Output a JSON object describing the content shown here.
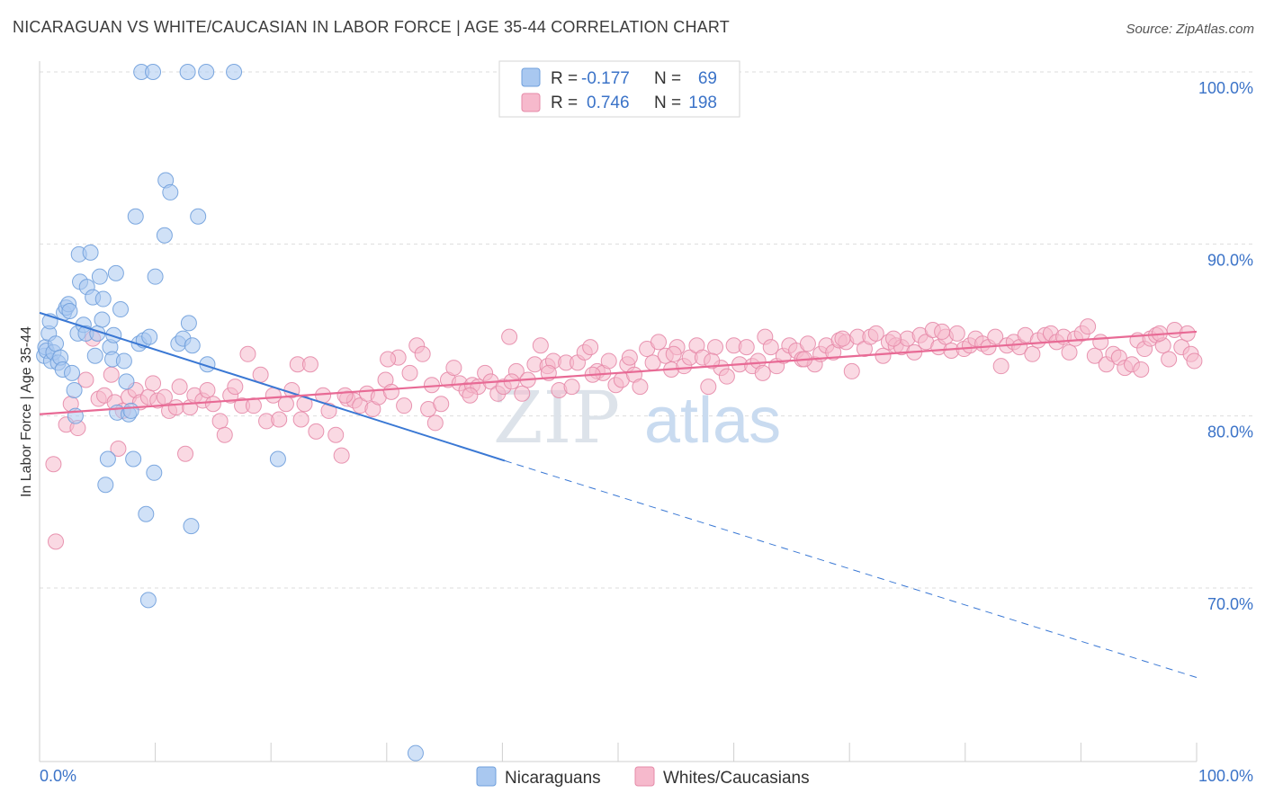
{
  "title": "NICARAGUAN VS WHITE/CAUCASIAN IN LABOR FORCE | AGE 35-44 CORRELATION CHART",
  "source": "Source: ZipAtlas.com",
  "watermark": {
    "part1": "ZIP",
    "part2": "atlas"
  },
  "colors": {
    "blue": "#3a78d4",
    "blue_fill": "#a9c8f0",
    "pink": "#e86a95",
    "pink_fill": "#f6b9cc",
    "tick": "#3b73c8",
    "grid": "#dddddd"
  },
  "legend": {
    "rows": [
      {
        "r_label": "R =",
        "r_value": "-0.177",
        "n_label": "N =",
        "n_value": "69"
      },
      {
        "r_label": "R =",
        "r_value": "0.746",
        "n_label": "N =",
        "n_value": "198"
      }
    ]
  },
  "bottom_legend": [
    "Nicaraguans",
    "Whites/Caucasians"
  ],
  "chart_data": {
    "type": "scatter",
    "xlabel": "",
    "ylabel": "In Labor Force | Age 35-44",
    "xlim": [
      0,
      100
    ],
    "ylim": [
      60,
      100
    ],
    "x_tick_labels": [
      "0.0%",
      "100.0%"
    ],
    "y_ticks": [
      70,
      80,
      90,
      100
    ],
    "y_tick_labels": [
      "70.0%",
      "80.0%",
      "90.0%",
      "100.0%"
    ],
    "grid": true,
    "series": [
      {
        "name": "Nicaraguans",
        "color": "#3a78d4",
        "trend": {
          "x": [
            0,
            40.2
          ],
          "y": [
            86.0,
            77.4
          ],
          "dashed_to": [
            100,
            64.8
          ]
        },
        "points": [
          [
            0.4,
            83.5
          ],
          [
            0.5,
            84.0
          ],
          [
            0.6,
            83.8
          ],
          [
            0.8,
            84.8
          ],
          [
            0.9,
            85.5
          ],
          [
            1.0,
            83.2
          ],
          [
            1.2,
            83.7
          ],
          [
            1.4,
            84.2
          ],
          [
            1.6,
            83.1
          ],
          [
            1.8,
            83.4
          ],
          [
            2.0,
            82.7
          ],
          [
            2.1,
            86.0
          ],
          [
            2.3,
            86.3
          ],
          [
            2.5,
            86.5
          ],
          [
            2.6,
            86.1
          ],
          [
            2.8,
            82.5
          ],
          [
            3.0,
            81.5
          ],
          [
            3.1,
            80.0
          ],
          [
            3.3,
            84.8
          ],
          [
            3.4,
            89.4
          ],
          [
            3.5,
            87.8
          ],
          [
            3.8,
            85.3
          ],
          [
            4.0,
            84.8
          ],
          [
            4.1,
            87.5
          ],
          [
            4.4,
            89.5
          ],
          [
            4.6,
            86.9
          ],
          [
            4.8,
            83.5
          ],
          [
            5.0,
            84.8
          ],
          [
            5.2,
            88.1
          ],
          [
            5.4,
            85.6
          ],
          [
            5.5,
            86.8
          ],
          [
            5.7,
            76.0
          ],
          [
            5.9,
            77.5
          ],
          [
            6.1,
            84.0
          ],
          [
            6.3,
            83.3
          ],
          [
            6.4,
            84.7
          ],
          [
            6.6,
            88.3
          ],
          [
            6.7,
            80.2
          ],
          [
            7.0,
            86.2
          ],
          [
            7.3,
            83.2
          ],
          [
            7.5,
            82.0
          ],
          [
            7.7,
            80.1
          ],
          [
            7.9,
            80.3
          ],
          [
            8.1,
            77.5
          ],
          [
            8.3,
            91.6
          ],
          [
            8.6,
            84.2
          ],
          [
            8.8,
            100.0
          ],
          [
            9.0,
            84.4
          ],
          [
            9.2,
            74.3
          ],
          [
            9.5,
            84.6
          ],
          [
            9.8,
            100.0
          ],
          [
            9.9,
            76.7
          ],
          [
            10.0,
            88.1
          ],
          [
            10.8,
            90.5
          ],
          [
            10.9,
            93.7
          ],
          [
            11.3,
            93.0
          ],
          [
            12.0,
            84.2
          ],
          [
            12.4,
            84.5
          ],
          [
            12.8,
            100.0
          ],
          [
            12.9,
            85.4
          ],
          [
            13.1,
            73.6
          ],
          [
            13.2,
            84.1
          ],
          [
            13.7,
            91.6
          ],
          [
            14.4,
            100.0
          ],
          [
            14.5,
            83.0
          ],
          [
            20.6,
            77.5
          ],
          [
            9.4,
            69.3
          ],
          [
            32.5,
            60.4
          ],
          [
            16.8,
            100.0
          ]
        ]
      },
      {
        "name": "Whites/Caucasians",
        "color": "#e86a95",
        "trend": {
          "x": [
            0,
            100
          ],
          "y": [
            80.1,
            84.9
          ]
        },
        "points": [
          [
            1.2,
            77.2
          ],
          [
            1.4,
            72.7
          ],
          [
            2.3,
            79.5
          ],
          [
            2.7,
            80.7
          ],
          [
            3.3,
            79.3
          ],
          [
            4.0,
            82.1
          ],
          [
            4.6,
            84.5
          ],
          [
            5.1,
            81.0
          ],
          [
            5.6,
            81.2
          ],
          [
            6.2,
            82.4
          ],
          [
            6.5,
            80.8
          ],
          [
            6.8,
            78.1
          ],
          [
            7.2,
            80.3
          ],
          [
            7.7,
            81.1
          ],
          [
            8.3,
            81.5
          ],
          [
            8.7,
            80.8
          ],
          [
            9.4,
            81.1
          ],
          [
            9.8,
            81.9
          ],
          [
            10.2,
            80.9
          ],
          [
            10.8,
            81.1
          ],
          [
            11.2,
            80.3
          ],
          [
            11.8,
            80.5
          ],
          [
            12.1,
            81.7
          ],
          [
            12.6,
            77.8
          ],
          [
            13.0,
            80.5
          ],
          [
            13.4,
            81.2
          ],
          [
            14.1,
            80.9
          ],
          [
            14.5,
            81.5
          ],
          [
            15.0,
            80.7
          ],
          [
            15.6,
            79.7
          ],
          [
            16.0,
            78.9
          ],
          [
            16.5,
            81.2
          ],
          [
            16.9,
            81.7
          ],
          [
            17.5,
            80.6
          ],
          [
            18.0,
            83.6
          ],
          [
            18.5,
            80.6
          ],
          [
            19.1,
            82.4
          ],
          [
            19.6,
            79.7
          ],
          [
            20.2,
            81.2
          ],
          [
            20.7,
            79.8
          ],
          [
            21.3,
            80.7
          ],
          [
            21.8,
            81.5
          ],
          [
            22.3,
            83.0
          ],
          [
            22.9,
            80.7
          ],
          [
            23.4,
            83.0
          ],
          [
            23.9,
            79.1
          ],
          [
            24.5,
            81.2
          ],
          [
            25.0,
            80.3
          ],
          [
            25.6,
            78.9
          ],
          [
            26.1,
            77.7
          ],
          [
            26.6,
            81.0
          ],
          [
            27.2,
            80.9
          ],
          [
            27.7,
            80.6
          ],
          [
            28.3,
            81.3
          ],
          [
            28.8,
            80.4
          ],
          [
            29.3,
            81.1
          ],
          [
            29.9,
            82.1
          ],
          [
            30.4,
            81.4
          ],
          [
            31.0,
            83.4
          ],
          [
            31.5,
            80.6
          ],
          [
            32.0,
            82.5
          ],
          [
            32.6,
            84.1
          ],
          [
            33.1,
            83.6
          ],
          [
            33.6,
            80.4
          ],
          [
            34.2,
            79.6
          ],
          [
            34.7,
            80.7
          ],
          [
            35.3,
            82.1
          ],
          [
            35.8,
            82.8
          ],
          [
            36.3,
            81.9
          ],
          [
            36.9,
            81.5
          ],
          [
            37.4,
            81.8
          ],
          [
            37.9,
            81.7
          ],
          [
            38.5,
            82.5
          ],
          [
            39.0,
            82.0
          ],
          [
            39.6,
            81.3
          ],
          [
            40.1,
            81.7
          ],
          [
            40.6,
            84.6
          ],
          [
            41.2,
            82.6
          ],
          [
            41.7,
            81.3
          ],
          [
            42.2,
            82.1
          ],
          [
            42.8,
            83.0
          ],
          [
            43.3,
            84.1
          ],
          [
            43.9,
            82.9
          ],
          [
            44.4,
            83.2
          ],
          [
            44.9,
            81.5
          ],
          [
            45.5,
            83.1
          ],
          [
            46.0,
            81.7
          ],
          [
            46.5,
            83.1
          ],
          [
            47.1,
            83.7
          ],
          [
            47.6,
            84.0
          ],
          [
            48.2,
            82.6
          ],
          [
            48.7,
            82.5
          ],
          [
            49.2,
            83.2
          ],
          [
            49.8,
            81.8
          ],
          [
            50.3,
            82.1
          ],
          [
            50.8,
            83.0
          ],
          [
            51.4,
            82.4
          ],
          [
            51.9,
            81.7
          ],
          [
            52.5,
            83.9
          ],
          [
            53.0,
            83.1
          ],
          [
            53.5,
            84.3
          ],
          [
            54.1,
            83.5
          ],
          [
            54.6,
            82.7
          ],
          [
            55.1,
            84.0
          ],
          [
            55.7,
            82.9
          ],
          [
            56.2,
            83.4
          ],
          [
            56.8,
            84.1
          ],
          [
            57.3,
            83.4
          ],
          [
            57.8,
            81.7
          ],
          [
            58.4,
            84.0
          ],
          [
            58.9,
            82.8
          ],
          [
            59.4,
            82.3
          ],
          [
            60.0,
            84.1
          ],
          [
            60.5,
            83.0
          ],
          [
            61.1,
            84.0
          ],
          [
            61.6,
            82.9
          ],
          [
            62.1,
            83.2
          ],
          [
            62.7,
            84.6
          ],
          [
            63.2,
            84.0
          ],
          [
            63.7,
            82.9
          ],
          [
            64.3,
            83.5
          ],
          [
            64.8,
            84.1
          ],
          [
            65.4,
            83.8
          ],
          [
            65.9,
            83.3
          ],
          [
            66.4,
            84.2
          ],
          [
            67.0,
            83.0
          ],
          [
            67.5,
            83.6
          ],
          [
            68.0,
            84.1
          ],
          [
            68.6,
            83.7
          ],
          [
            69.1,
            84.4
          ],
          [
            69.7,
            84.3
          ],
          [
            70.2,
            82.6
          ],
          [
            70.7,
            84.6
          ],
          [
            71.3,
            83.9
          ],
          [
            71.8,
            84.6
          ],
          [
            72.3,
            84.8
          ],
          [
            72.9,
            83.5
          ],
          [
            73.4,
            84.3
          ],
          [
            74.0,
            84.1
          ],
          [
            74.5,
            84.0
          ],
          [
            75.0,
            84.5
          ],
          [
            75.6,
            83.7
          ],
          [
            76.1,
            84.7
          ],
          [
            76.6,
            84.3
          ],
          [
            77.2,
            85.0
          ],
          [
            77.7,
            84.0
          ],
          [
            78.3,
            84.6
          ],
          [
            78.8,
            83.8
          ],
          [
            79.3,
            84.8
          ],
          [
            79.9,
            83.9
          ],
          [
            80.4,
            84.1
          ],
          [
            80.9,
            84.5
          ],
          [
            81.5,
            84.2
          ],
          [
            82.0,
            84.0
          ],
          [
            82.6,
            84.6
          ],
          [
            83.1,
            82.9
          ],
          [
            83.6,
            84.1
          ],
          [
            84.2,
            84.3
          ],
          [
            84.7,
            84.0
          ],
          [
            85.2,
            84.7
          ],
          [
            85.8,
            83.6
          ],
          [
            86.3,
            84.4
          ],
          [
            86.9,
            84.7
          ],
          [
            87.4,
            84.8
          ],
          [
            87.9,
            84.3
          ],
          [
            88.5,
            84.6
          ],
          [
            89.0,
            83.7
          ],
          [
            89.5,
            84.5
          ],
          [
            90.1,
            84.8
          ],
          [
            90.6,
            85.2
          ],
          [
            91.2,
            83.5
          ],
          [
            91.7,
            84.3
          ],
          [
            92.2,
            83.0
          ],
          [
            92.8,
            83.6
          ],
          [
            93.3,
            83.4
          ],
          [
            93.8,
            82.8
          ],
          [
            94.4,
            83.0
          ],
          [
            94.9,
            84.4
          ],
          [
            95.5,
            83.9
          ],
          [
            96.0,
            84.5
          ],
          [
            96.5,
            84.7
          ],
          [
            97.1,
            84.1
          ],
          [
            97.6,
            83.3
          ],
          [
            98.1,
            85.0
          ],
          [
            98.7,
            84.0
          ],
          [
            99.2,
            84.8
          ],
          [
            99.5,
            83.6
          ],
          [
            99.8,
            83.2
          ],
          [
            96.8,
            84.8
          ],
          [
            95.2,
            82.7
          ],
          [
            78.0,
            84.9
          ],
          [
            73.8,
            84.5
          ],
          [
            69.4,
            84.5
          ],
          [
            66.1,
            83.3
          ],
          [
            62.5,
            82.5
          ],
          [
            58.1,
            83.2
          ],
          [
            54.8,
            83.6
          ],
          [
            51.0,
            83.4
          ],
          [
            47.8,
            82.4
          ],
          [
            44.0,
            82.5
          ],
          [
            40.8,
            82.0
          ],
          [
            37.2,
            81.2
          ],
          [
            33.9,
            81.8
          ],
          [
            30.1,
            83.3
          ],
          [
            26.4,
            81.2
          ],
          [
            22.6,
            79.8
          ]
        ]
      }
    ]
  }
}
